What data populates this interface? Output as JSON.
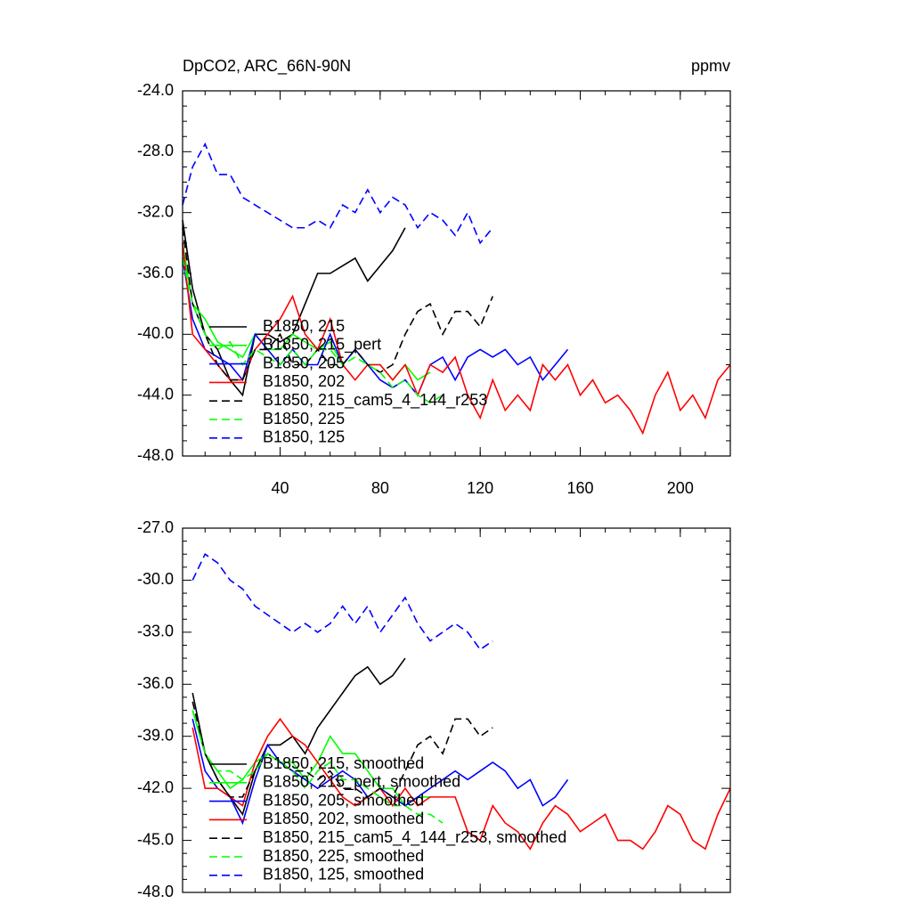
{
  "chart_data": [
    {
      "type": "line",
      "title": "DpCO2, ARC_66N-90N",
      "units": "ppmv",
      "x": [
        1,
        5,
        10,
        15,
        20,
        25,
        30,
        35,
        40,
        45,
        50,
        55,
        60,
        65,
        70,
        75,
        80,
        85,
        90,
        95,
        100,
        105,
        110,
        115,
        120,
        125,
        130,
        135,
        140,
        145,
        150,
        155,
        160,
        165,
        170,
        175,
        180,
        185,
        190,
        195,
        200,
        205,
        210,
        215,
        220
      ],
      "xlim": [
        1,
        220
      ],
      "xticks": [
        40,
        80,
        120,
        160,
        200
      ],
      "show_xtick_labels": true,
      "ylim": [
        -48,
        -24
      ],
      "yticks": [
        {
          "value": -48,
          "label": "-48.0"
        },
        {
          "value": -44,
          "label": "-44.0"
        },
        {
          "value": -40,
          "label": "-40.0"
        },
        {
          "value": -36,
          "label": "-36.0"
        },
        {
          "value": -32,
          "label": "-32.0"
        },
        {
          "value": -28,
          "label": "-28.0"
        },
        {
          "value": -24,
          "label": "-24.0"
        }
      ],
      "legend": "lower left",
      "series": [
        {
          "name": "B1850, 215",
          "color": "#000000",
          "dashed": false,
          "values": [
            -32.5,
            -37,
            -40,
            -41,
            -43,
            -44,
            -40,
            -40,
            -40.5,
            -40,
            -38,
            -36,
            -36,
            -35.5,
            -35,
            -36.5,
            -35.5,
            -34.5,
            -33,
            null,
            null,
            null,
            null,
            null,
            null,
            null,
            null,
            null,
            null,
            null,
            null,
            null,
            null,
            null,
            null,
            null,
            null,
            null,
            null,
            null,
            null,
            null,
            null,
            null,
            null
          ]
        },
        {
          "name": "B1850, 215_pert",
          "color": "#00ff00",
          "dashed": false,
          "values": [
            -34,
            -38,
            -39,
            -40.5,
            -41,
            -41.5,
            -40,
            -41,
            -41,
            -40,
            -40.5,
            -41,
            -40.5,
            -42,
            -41,
            -42,
            -42,
            -43,
            -42,
            -43,
            -42.5,
            null,
            null,
            null,
            null,
            null,
            null,
            null,
            null,
            null,
            null,
            null,
            null,
            null,
            null,
            null,
            null,
            null,
            null,
            null,
            null,
            null,
            null,
            null,
            null
          ]
        },
        {
          "name": "B1850, 205",
          "color": "#0000ff",
          "dashed": false,
          "values": [
            -35,
            -39,
            -41,
            -41.5,
            -42,
            -43,
            -40,
            -41,
            -42,
            -41,
            -42,
            -42,
            -40,
            -42,
            -41,
            -42,
            -43,
            -43.5,
            -43,
            -44,
            -42,
            -41.5,
            -43,
            -41.5,
            -41,
            -41.5,
            -41,
            -42,
            -41.5,
            -43,
            -42,
            -41,
            null,
            null,
            null,
            null,
            null,
            null,
            null,
            null,
            null,
            null,
            null,
            null,
            null
          ]
        },
        {
          "name": "B1850, 202",
          "color": "#ff0000",
          "dashed": false,
          "values": [
            -34,
            -40,
            -41,
            -42,
            -43,
            -43,
            -41,
            -40,
            -39,
            -37.5,
            -40,
            -41,
            -39,
            -42,
            -43,
            -42,
            -42,
            -43,
            -42,
            -44,
            -42,
            -42.5,
            -41.5,
            -44,
            -45.5,
            -43,
            -45,
            -44,
            -45,
            -42,
            -43,
            -42,
            -44,
            -43,
            -44.5,
            -44,
            -45,
            -46.5,
            -44,
            -42.5,
            -45,
            -44,
            -45.5,
            -43,
            -42
          ]
        },
        {
          "name": "B1850, 215_cam5_4_144_r253",
          "color": "#000000",
          "dashed": true,
          "values": [
            -33,
            -38,
            -40,
            -42,
            -43,
            -43,
            -41,
            -41,
            -40,
            -42,
            -42,
            -41,
            -42,
            -42,
            -41,
            -42,
            -42.5,
            -42,
            -40,
            -38.5,
            -38,
            -40,
            -38.5,
            -38.5,
            -39.5,
            -37.5,
            null,
            null,
            null,
            null,
            null,
            null,
            null,
            null,
            null,
            null,
            null,
            null,
            null,
            null,
            null,
            null,
            null,
            null,
            null
          ]
        },
        {
          "name": "B1850, 225",
          "color": "#00ff00",
          "dashed": true,
          "values": [
            -35,
            -38,
            -40,
            -41,
            -40.5,
            -42,
            -41,
            -41.5,
            -42,
            -41,
            -42,
            -41,
            -41,
            -42,
            -41.5,
            -42,
            -42.5,
            -43.5,
            -43,
            -44,
            -44.5,
            -44,
            null,
            null,
            null,
            null,
            null,
            null,
            null,
            null,
            null,
            null,
            null,
            null,
            null,
            null,
            null,
            null,
            null,
            null,
            null,
            null,
            null,
            null,
            null
          ]
        },
        {
          "name": "B1850, 125",
          "color": "#0000ff",
          "dashed": true,
          "values": [
            -31.5,
            -29,
            -27.5,
            -29.5,
            -29.5,
            -31,
            -31.5,
            -32,
            -32.5,
            -33,
            -33,
            -32.5,
            -33,
            -31.5,
            -32,
            -30.5,
            -32,
            -31,
            -31.5,
            -33,
            -32,
            -32.5,
            -33.5,
            -32,
            -34,
            -33,
            null,
            null,
            null,
            null,
            null,
            null,
            null,
            null,
            null,
            null,
            null,
            null,
            null,
            null,
            null,
            null,
            null,
            null,
            null
          ]
        }
      ]
    },
    {
      "type": "line",
      "x": [
        1,
        5,
        10,
        15,
        20,
        25,
        30,
        35,
        40,
        45,
        50,
        55,
        60,
        65,
        70,
        75,
        80,
        85,
        90,
        95,
        100,
        105,
        110,
        115,
        120,
        125,
        130,
        135,
        140,
        145,
        150,
        155,
        160,
        165,
        170,
        175,
        180,
        185,
        190,
        195,
        200,
        205,
        210,
        215,
        220
      ],
      "xlim": [
        1,
        220
      ],
      "xticks": [
        40,
        80,
        120,
        160,
        200
      ],
      "show_xtick_labels": false,
      "ylim": [
        -48,
        -27
      ],
      "yticks": [
        {
          "value": -48,
          "label": "-48.0"
        },
        {
          "value": -45,
          "label": "-45.0"
        },
        {
          "value": -42,
          "label": "-42.0"
        },
        {
          "value": -39,
          "label": "-39.0"
        },
        {
          "value": -36,
          "label": "-36.0"
        },
        {
          "value": -33,
          "label": "-33.0"
        },
        {
          "value": -30,
          "label": "-30.0"
        },
        {
          "value": -27,
          "label": "-27.0"
        }
      ],
      "legend": "lower left",
      "series": [
        {
          "name": "B1850, 215, smoothed",
          "color": "#000000",
          "dashed": false,
          "values": [
            null,
            -36.5,
            -40,
            -41.5,
            -42.5,
            -43.5,
            -41,
            -39.5,
            -39.5,
            -39,
            -40,
            -38.5,
            -37.5,
            -36.5,
            -35.5,
            -35,
            -36,
            -35.5,
            -34.5,
            null,
            null,
            null,
            null,
            null,
            null,
            null,
            null,
            null,
            null,
            null,
            null,
            null,
            null,
            null,
            null,
            null,
            null,
            null,
            null,
            null,
            null,
            null,
            null,
            null,
            null
          ]
        },
        {
          "name": "B1850, 215_pert, smoothed",
          "color": "#00ff00",
          "dashed": false,
          "values": [
            null,
            -37.5,
            -40,
            -41,
            -42,
            -41.5,
            -40.5,
            -40,
            -40.5,
            -40.5,
            -41.5,
            -40.5,
            -39,
            -40,
            -40,
            -41,
            -42,
            -42,
            -43,
            -42.5,
            -42.5,
            null,
            null,
            null,
            null,
            null,
            null,
            null,
            null,
            null,
            null,
            null,
            null,
            null,
            null,
            null,
            null,
            null,
            null,
            null,
            null,
            null,
            null,
            null,
            null
          ]
        },
        {
          "name": "B1850, 205, smoothed",
          "color": "#0000ff",
          "dashed": false,
          "values": [
            null,
            -38,
            -41,
            -42,
            -42.5,
            -44,
            -41.5,
            -39.5,
            -40.5,
            -41,
            -41.5,
            -42,
            -41.5,
            -41,
            -41.5,
            -42.5,
            -42,
            -42.5,
            -43,
            -42.5,
            -42,
            -41.5,
            -41,
            -41.5,
            -41,
            -40.5,
            -41,
            -42,
            -41.5,
            -43,
            -42.5,
            -41.5,
            null,
            null,
            null,
            null,
            null,
            null,
            null,
            null,
            null,
            null,
            null,
            null,
            null
          ]
        },
        {
          "name": "B1850, 202, smoothed",
          "color": "#ff0000",
          "dashed": false,
          "values": [
            null,
            -38.5,
            -42,
            -42,
            -42.5,
            -43,
            -40.5,
            -39,
            -38,
            -39,
            -39.5,
            -40.5,
            -41.5,
            -42.5,
            -43,
            -42.5,
            -42,
            -43,
            -42,
            -43,
            -42.5,
            -42.5,
            -42.5,
            -44.5,
            -45,
            -43,
            -44,
            -44.5,
            -45.5,
            -44,
            -43,
            -43.5,
            -44.5,
            -44,
            -43.5,
            -45,
            -45,
            -45.5,
            -44.5,
            -43,
            -43.5,
            -45,
            -45.5,
            -43.5,
            -42
          ]
        },
        {
          "name": "B1850, 215_cam5_4_144_r253, smoothed",
          "color": "#000000",
          "dashed": true,
          "values": [
            null,
            -37,
            -40,
            -41.5,
            -42.5,
            -42.5,
            -41,
            -40,
            -40.5,
            -41,
            -41,
            -41.5,
            -41,
            -42,
            -42,
            -42.5,
            -42,
            -42.5,
            -41,
            -39.5,
            -39,
            -40,
            -38,
            -38,
            -39,
            -38.5,
            null,
            null,
            null,
            null,
            null,
            null,
            null,
            null,
            null,
            null,
            null,
            null,
            null,
            null,
            null,
            null,
            null,
            null,
            null
          ]
        },
        {
          "name": "B1850, 225, smoothed",
          "color": "#00ff00",
          "dashed": true,
          "values": [
            null,
            -37.5,
            -40,
            -41,
            -41,
            -41.5,
            -41,
            -40,
            -40.5,
            -41,
            -42,
            -41,
            -40.5,
            -41.5,
            -41.5,
            -42,
            -42.5,
            -43,
            -43,
            -43.5,
            -43.5,
            -44,
            null,
            null,
            null,
            null,
            null,
            null,
            null,
            null,
            null,
            null,
            null,
            null,
            null,
            null,
            null,
            null,
            null,
            null,
            null,
            null,
            null,
            null,
            null
          ]
        },
        {
          "name": "B1850, 125, smoothed",
          "color": "#0000ff",
          "dashed": true,
          "values": [
            null,
            -30,
            -28.5,
            -29,
            -30,
            -30.5,
            -31.5,
            -32,
            -32.5,
            -33,
            -32.5,
            -33,
            -32.5,
            -31.5,
            -32.5,
            -31.5,
            -33,
            -32,
            -31,
            -32.5,
            -33.5,
            -33,
            -32.5,
            -33,
            -34,
            -33.5,
            null,
            null,
            null,
            null,
            null,
            null,
            null,
            null,
            null,
            null,
            null,
            null,
            null,
            null,
            null,
            null,
            null,
            null,
            null
          ]
        }
      ]
    }
  ]
}
